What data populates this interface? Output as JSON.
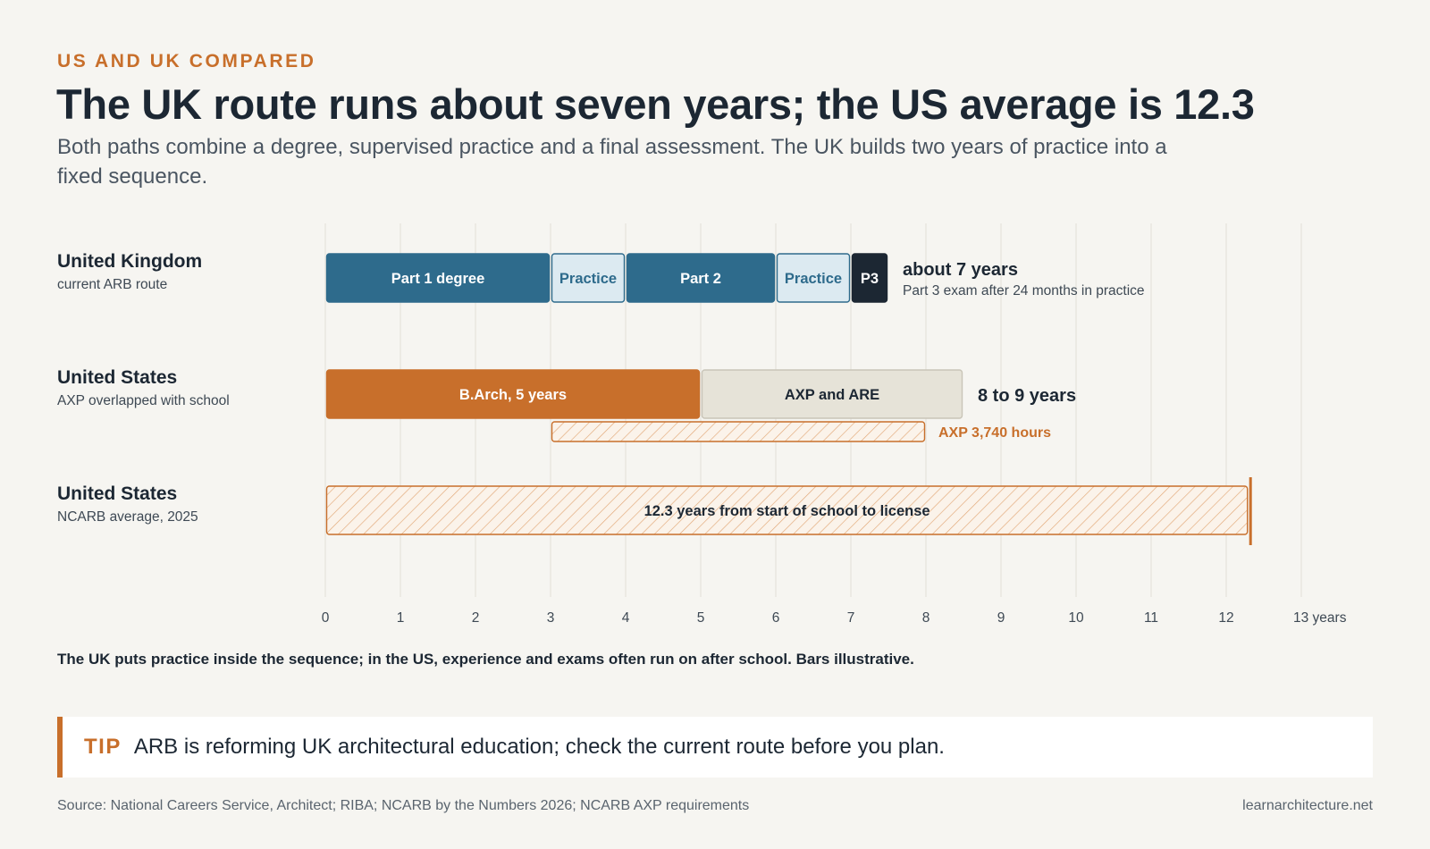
{
  "header": {
    "eyebrow": "US AND UK COMPARED",
    "title": "The UK route runs about seven years; the US average is 12.3",
    "subtitle": "Both paths combine a degree, supervised practice and a final assessment. The UK builds two years of practice into a fixed sequence."
  },
  "rows": [
    {
      "title": "United Kingdom",
      "sub": "current ARB route"
    },
    {
      "title": "United States",
      "sub": "AXP overlapped with school"
    },
    {
      "title": "United States",
      "sub": "NCARB average, 2025"
    }
  ],
  "colors": {
    "navy_blue": "#2e6b8c",
    "light_blue": "#dceaf1",
    "dark": "#1c2733",
    "orange": "#c86f2b",
    "beige": "#e6e3d8",
    "grid": "#e2dfd6"
  },
  "chart_data": {
    "type": "bar",
    "orientation": "horizontal",
    "xlim": [
      0,
      13
    ],
    "ticks": [
      0,
      1,
      2,
      3,
      4,
      5,
      6,
      7,
      8,
      9,
      10,
      11,
      12,
      13
    ],
    "tick_labels": [
      "0",
      "1",
      "2",
      "3",
      "4",
      "5",
      "6",
      "7",
      "8",
      "9",
      "10",
      "11",
      "12",
      "13 years"
    ],
    "grid": true,
    "segments": [
      {
        "row": 0,
        "lane": "main",
        "start": 0,
        "end": 3,
        "label": "Part 1 degree",
        "style": "solid-blue"
      },
      {
        "row": 0,
        "lane": "main",
        "start": 3,
        "end": 4,
        "label": "Practice",
        "style": "light-blue"
      },
      {
        "row": 0,
        "lane": "main",
        "start": 4,
        "end": 6,
        "label": "Part 2",
        "style": "solid-blue"
      },
      {
        "row": 0,
        "lane": "main",
        "start": 6,
        "end": 7,
        "label": "Practice",
        "style": "light-blue"
      },
      {
        "row": 0,
        "lane": "main",
        "start": 7,
        "end": 7.5,
        "label": "P3",
        "style": "dark"
      },
      {
        "row": 1,
        "lane": "main",
        "start": 0,
        "end": 5,
        "label": "B.Arch, 5 years",
        "style": "solid-orange"
      },
      {
        "row": 1,
        "lane": "main",
        "start": 5,
        "end": 8.5,
        "label": "AXP and ARE",
        "style": "beige"
      },
      {
        "row": 1,
        "lane": "sub",
        "start": 3,
        "end": 8,
        "label": "",
        "style": "hatched-orange"
      },
      {
        "row": 2,
        "lane": "main",
        "start": 0,
        "end": 12.3,
        "label": "12.3 years from start of school to license",
        "style": "hatched-orange"
      }
    ],
    "annotations": [
      {
        "row": 0,
        "title": "about 7 years",
        "sub": "Part 3 exam after 24 months in practice",
        "after": 7.5
      },
      {
        "row": 1,
        "title": "8 to 9 years",
        "after": 8.5
      },
      {
        "row": 1,
        "lane": "sub",
        "text": "AXP 3,740 hours",
        "after": 8
      }
    ],
    "reference_line": {
      "row": 2,
      "value": 12.3
    }
  },
  "footnote": "The UK puts practice inside the sequence; in the US, experience and exams often run on after school. Bars illustrative.",
  "tip": {
    "label": "TIP",
    "text": "ARB is reforming UK architectural education; check the current route before you plan."
  },
  "source": "Source: National Careers Service, Architect; RIBA; NCARB by the Numbers 2026; NCARB AXP requirements",
  "site": "learnarchitecture.net"
}
